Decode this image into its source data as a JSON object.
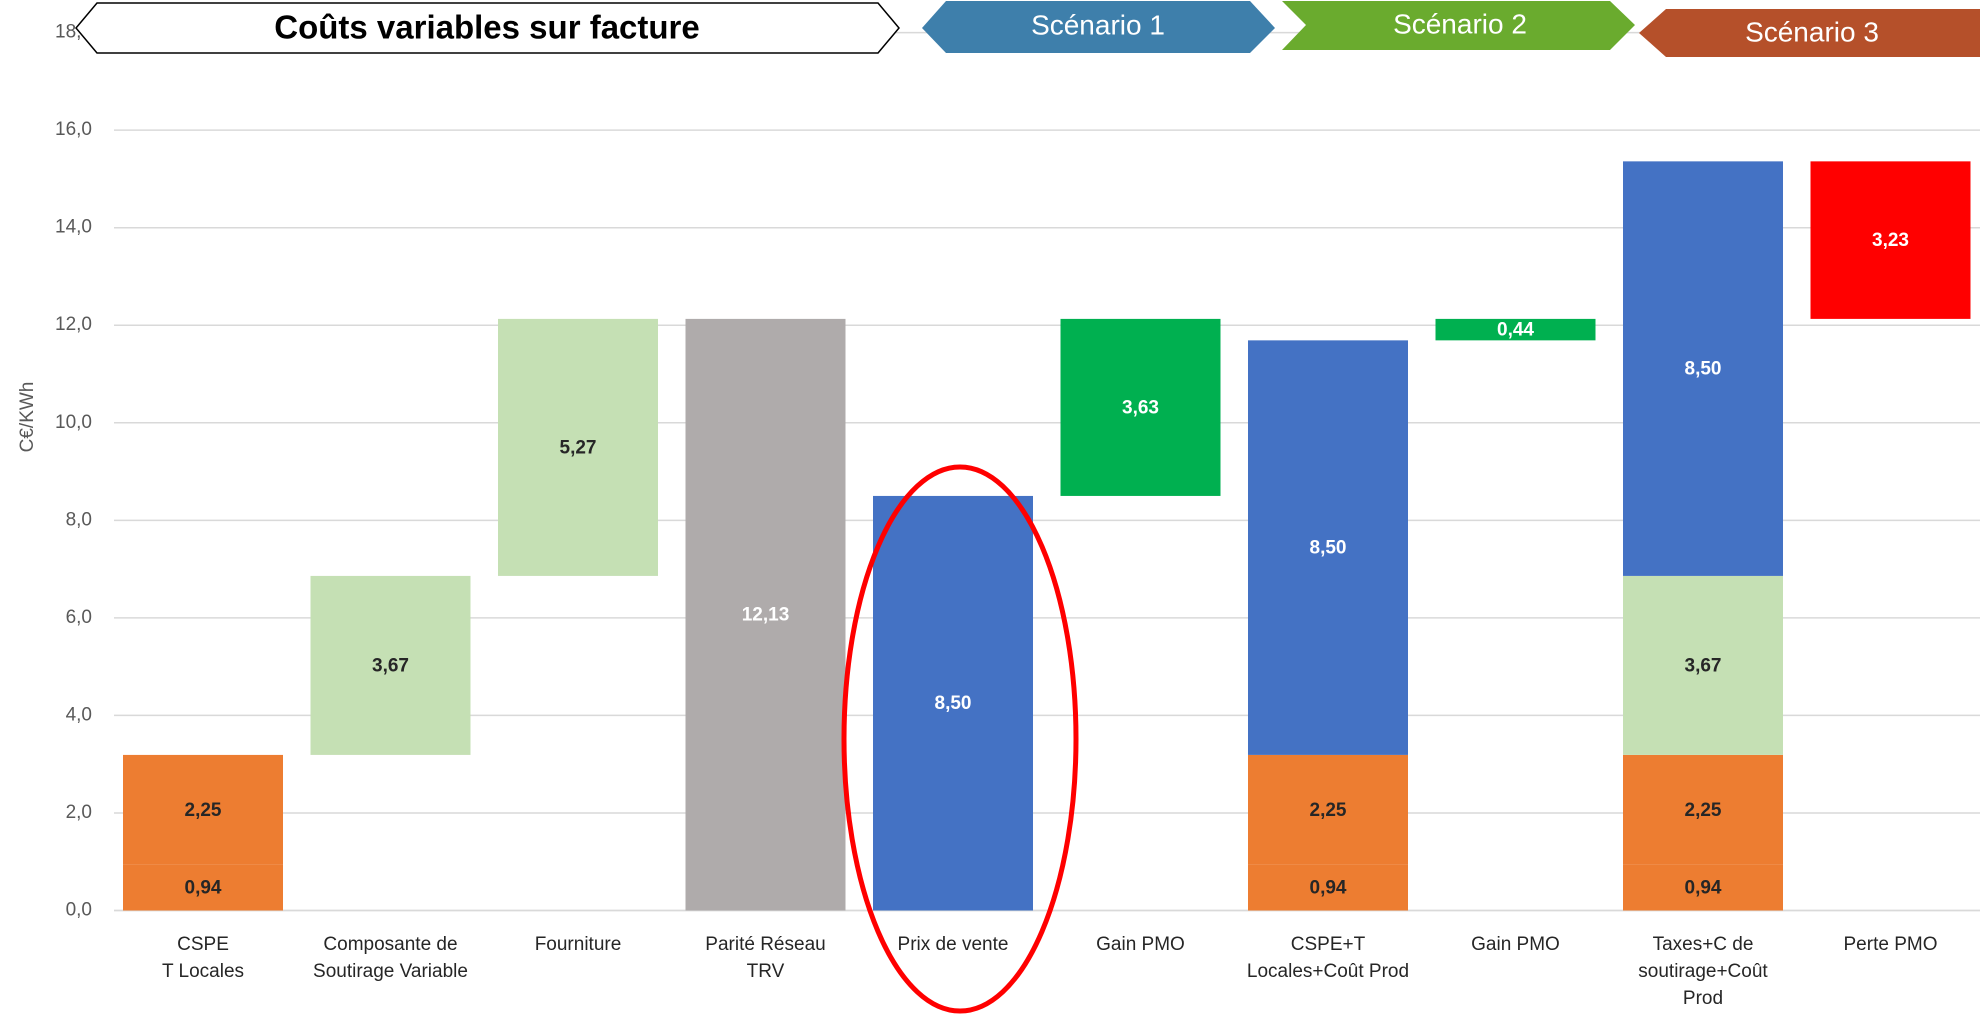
{
  "header": {
    "title": "Coûts variables sur facture",
    "scenarios": [
      "Scénario 1",
      "Scénario 2",
      "Scénario 3"
    ]
  },
  "chart_data": {
    "type": "waterfall",
    "ylabel": "C€/KWh",
    "categories": [
      "CSPE\nT Locales",
      "Composante de\nSoutirage Variable",
      "Fourniture",
      "Parité Réseau\nTRV",
      "Prix de vente",
      "Gain PMO",
      "CSPE+T\nLocales+Coût Prod",
      "Gain PMO",
      "Taxes+C de\nsoutirage+Coût\nProd",
      "Perte PMO"
    ],
    "bars": [
      {
        "kind": "total",
        "values": [
          0.94,
          2.25
        ],
        "value_labels": [
          "0,94",
          "2,25"
        ],
        "colors": [
          "#ed7d31",
          "#ed7d31"
        ]
      },
      {
        "kind": "step",
        "values": [
          3.67
        ],
        "value_labels": [
          "3,67"
        ],
        "colors": [
          "#c5e0b4"
        ]
      },
      {
        "kind": "step",
        "values": [
          5.27
        ],
        "value_labels": [
          "5,27"
        ],
        "colors": [
          "#c5e0b4"
        ]
      },
      {
        "kind": "total",
        "values": [
          12.13
        ],
        "value_labels": [
          "12,13"
        ],
        "colors": [
          "#afabab"
        ]
      },
      {
        "kind": "total",
        "values": [
          8.5
        ],
        "value_labels": [
          "8,50"
        ],
        "colors": [
          "#4472c4"
        ]
      },
      {
        "kind": "step",
        "values": [
          3.63
        ],
        "value_labels": [
          "3,63"
        ],
        "colors": [
          "#00b050"
        ]
      },
      {
        "kind": "total",
        "values": [
          0.94,
          2.25,
          8.5
        ],
        "value_labels": [
          "0,94",
          "2,25",
          "8,50"
        ],
        "colors": [
          "#ed7d31",
          "#ed7d31",
          "#4472c4"
        ]
      },
      {
        "kind": "step",
        "values": [
          0.44
        ],
        "value_labels": [
          "0,44"
        ],
        "colors": [
          "#00b050"
        ]
      },
      {
        "kind": "total",
        "values": [
          0.94,
          2.25,
          3.67,
          8.5
        ],
        "value_labels": [
          "0,94",
          "2,25",
          "3,67",
          "8,50"
        ],
        "colors": [
          "#ed7d31",
          "#ed7d31",
          "#c5e0b4",
          "#4472c4"
        ]
      },
      {
        "kind": "drop",
        "values": [
          3.23
        ],
        "value_labels": [
          "3,23"
        ],
        "colors": [
          "#ff0000"
        ]
      }
    ],
    "ylim": [
      0,
      18
    ],
    "yticks": [
      {
        "value": 0,
        "label": "0,0"
      },
      {
        "value": 2,
        "label": "2,0"
      },
      {
        "value": 4,
        "label": "4,0"
      },
      {
        "value": 6,
        "label": "6,0"
      },
      {
        "value": 8,
        "label": "8,0"
      },
      {
        "value": 10,
        "label": "10,0"
      },
      {
        "value": 12,
        "label": "12,0"
      },
      {
        "value": 14,
        "label": "14,0"
      },
      {
        "value": 16,
        "label": "16,0"
      },
      {
        "value": 18,
        "label": "18,0"
      }
    ],
    "grid": true
  }
}
